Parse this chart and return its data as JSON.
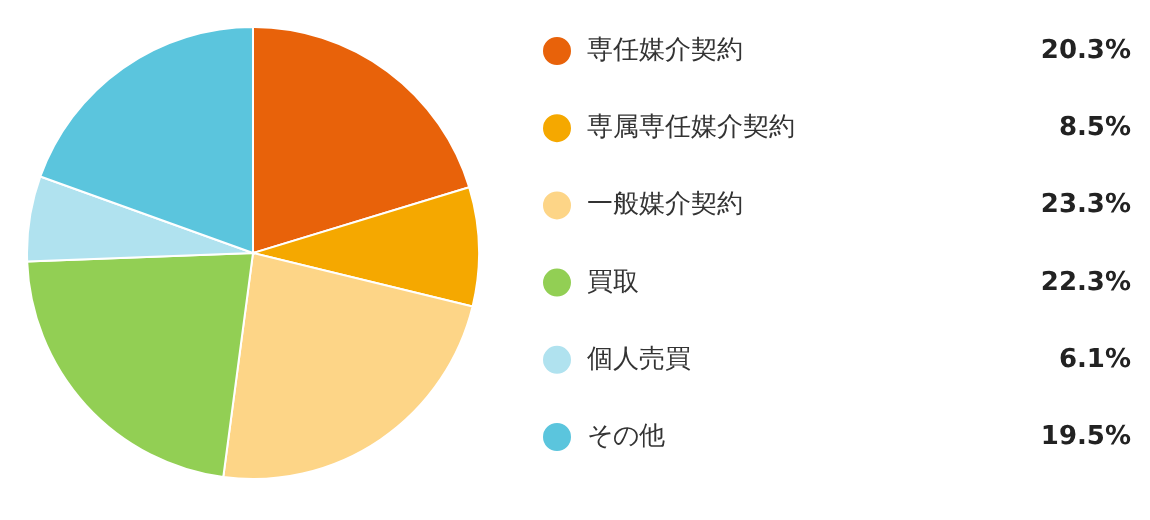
{
  "chart_data": {
    "type": "pie",
    "categories": [
      "専任媒介契約",
      "専属専任媒介契約",
      "一般媒介契約",
      "買取",
      "個人売買",
      "その他"
    ],
    "values": [
      20.3,
      8.5,
      23.3,
      22.3,
      6.1,
      19.5
    ],
    "value_labels": [
      "20.3%",
      "8.5%",
      "23.3%",
      "22.3%",
      "6.1%",
      "19.5%"
    ],
    "colors": [
      "#e8620a",
      "#f5a800",
      "#fdd587",
      "#92cf54",
      "#b0e2ef",
      "#5bc5dd"
    ],
    "legend": "right"
  }
}
